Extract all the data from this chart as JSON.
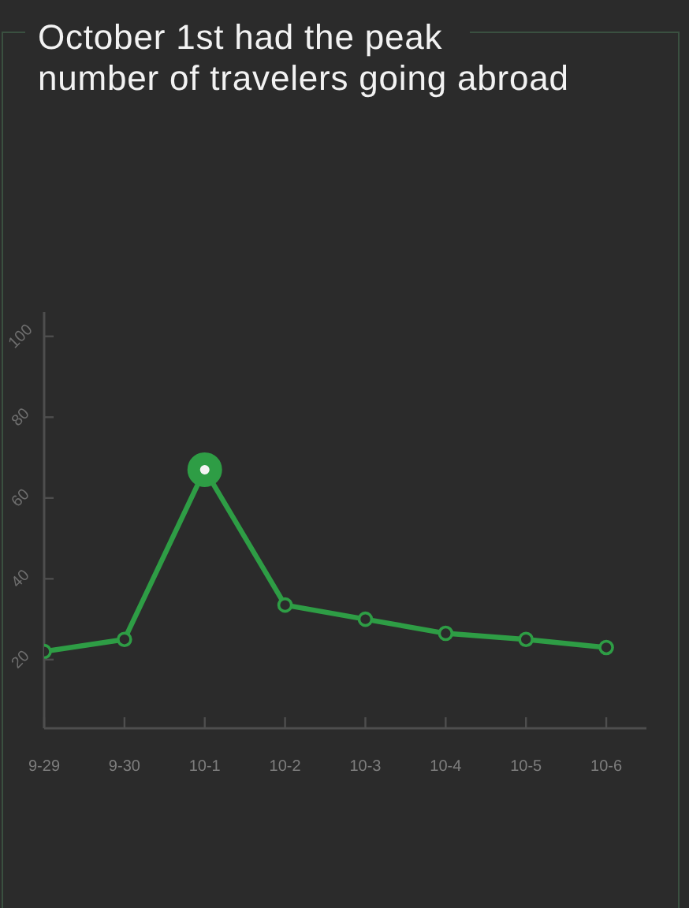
{
  "chart_data": {
    "type": "line",
    "title": "October 1st had the peak\nnumber of travelers going abroad",
    "categories": [
      "9-29",
      "9-30",
      "10-1",
      "10-2",
      "10-3",
      "10-4",
      "10-5",
      "10-6"
    ],
    "values": [
      22,
      25,
      67,
      33.5,
      30,
      26.5,
      25,
      23
    ],
    "color": "#2e9d45",
    "ylim": [
      3,
      106
    ],
    "yticks": [
      20,
      40,
      60,
      80,
      100
    ],
    "marker": "circle"
  }
}
